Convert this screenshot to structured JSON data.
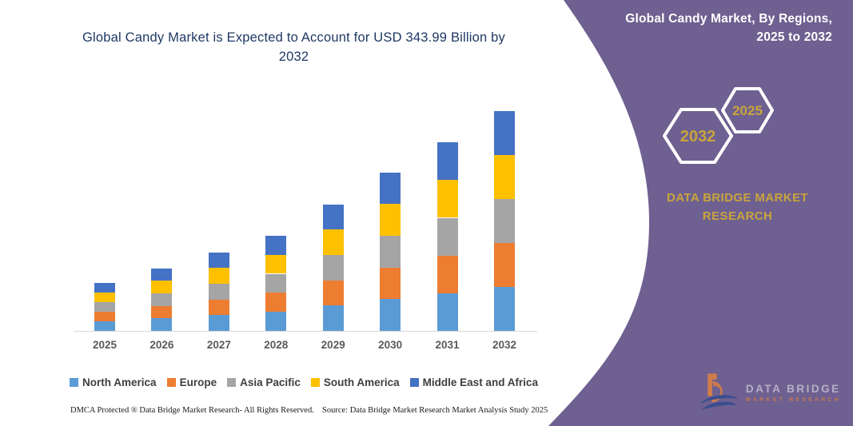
{
  "header": {
    "chart_title": "Global Candy Market is Expected to Account for USD 343.99 Billion by 2032"
  },
  "chart_data": {
    "type": "bar",
    "stacked": true,
    "title": "Global Candy Market is Expected to Account for USD 343.99 Billion by 2032",
    "unit": "USD Billion",
    "categories": [
      "2025",
      "2026",
      "2027",
      "2028",
      "2029",
      "2030",
      "2031",
      "2032"
    ],
    "series": [
      {
        "name": "North America",
        "color": "#5B9BD5",
        "values": [
          15.0,
          19.6,
          24.6,
          29.8,
          39.6,
          49.6,
          59.0,
          68.8
        ]
      },
      {
        "name": "Europe",
        "color": "#ED7D31",
        "values": [
          15.0,
          19.6,
          24.6,
          29.8,
          39.6,
          49.6,
          59.0,
          68.8
        ]
      },
      {
        "name": "Asia Pacific",
        "color": "#A5A5A5",
        "values": [
          15.0,
          19.6,
          24.6,
          29.8,
          39.6,
          49.6,
          59.0,
          68.8
        ]
      },
      {
        "name": "South America",
        "color": "#FFC000",
        "values": [
          15.0,
          19.6,
          24.6,
          29.8,
          39.6,
          49.6,
          59.0,
          68.8
        ]
      },
      {
        "name": "Middle East and Africa",
        "color": "#4472C4",
        "values": [
          15.0,
          19.6,
          24.6,
          29.8,
          39.6,
          49.6,
          59.0,
          68.8
        ]
      }
    ],
    "totals_estimated": [
      75,
      98,
      123,
      149,
      198,
      248,
      295,
      343.99
    ],
    "ylim": [
      0,
      344
    ],
    "grid": false,
    "legend_position": "bottom"
  },
  "footer": {
    "dmca": "DMCA Protected ® Data Bridge Market Research-  All Rights Reserved.",
    "source": "Source: Data Bridge Market Research  Market Analysis Study 2025"
  },
  "side_panel": {
    "title": "Global Candy Market, By Regions, 2025 to 2032",
    "hexagon_large_label": "2032",
    "hexagon_small_label": "2025",
    "brand_line1": "DATA BRIDGE MARKET",
    "brand_line2": "RESEARCH"
  },
  "logo": {
    "line1": "DATA BRIDGE",
    "line2": "MARKET RESEARCH"
  },
  "colors": {
    "panel_purple": "#6E6090",
    "accent_gold": "#C9A43D",
    "title_text": "#1F3864",
    "axis_line": "#D9D9D9",
    "tick_label": "#595959",
    "legend_text": "#3F3F3F"
  }
}
